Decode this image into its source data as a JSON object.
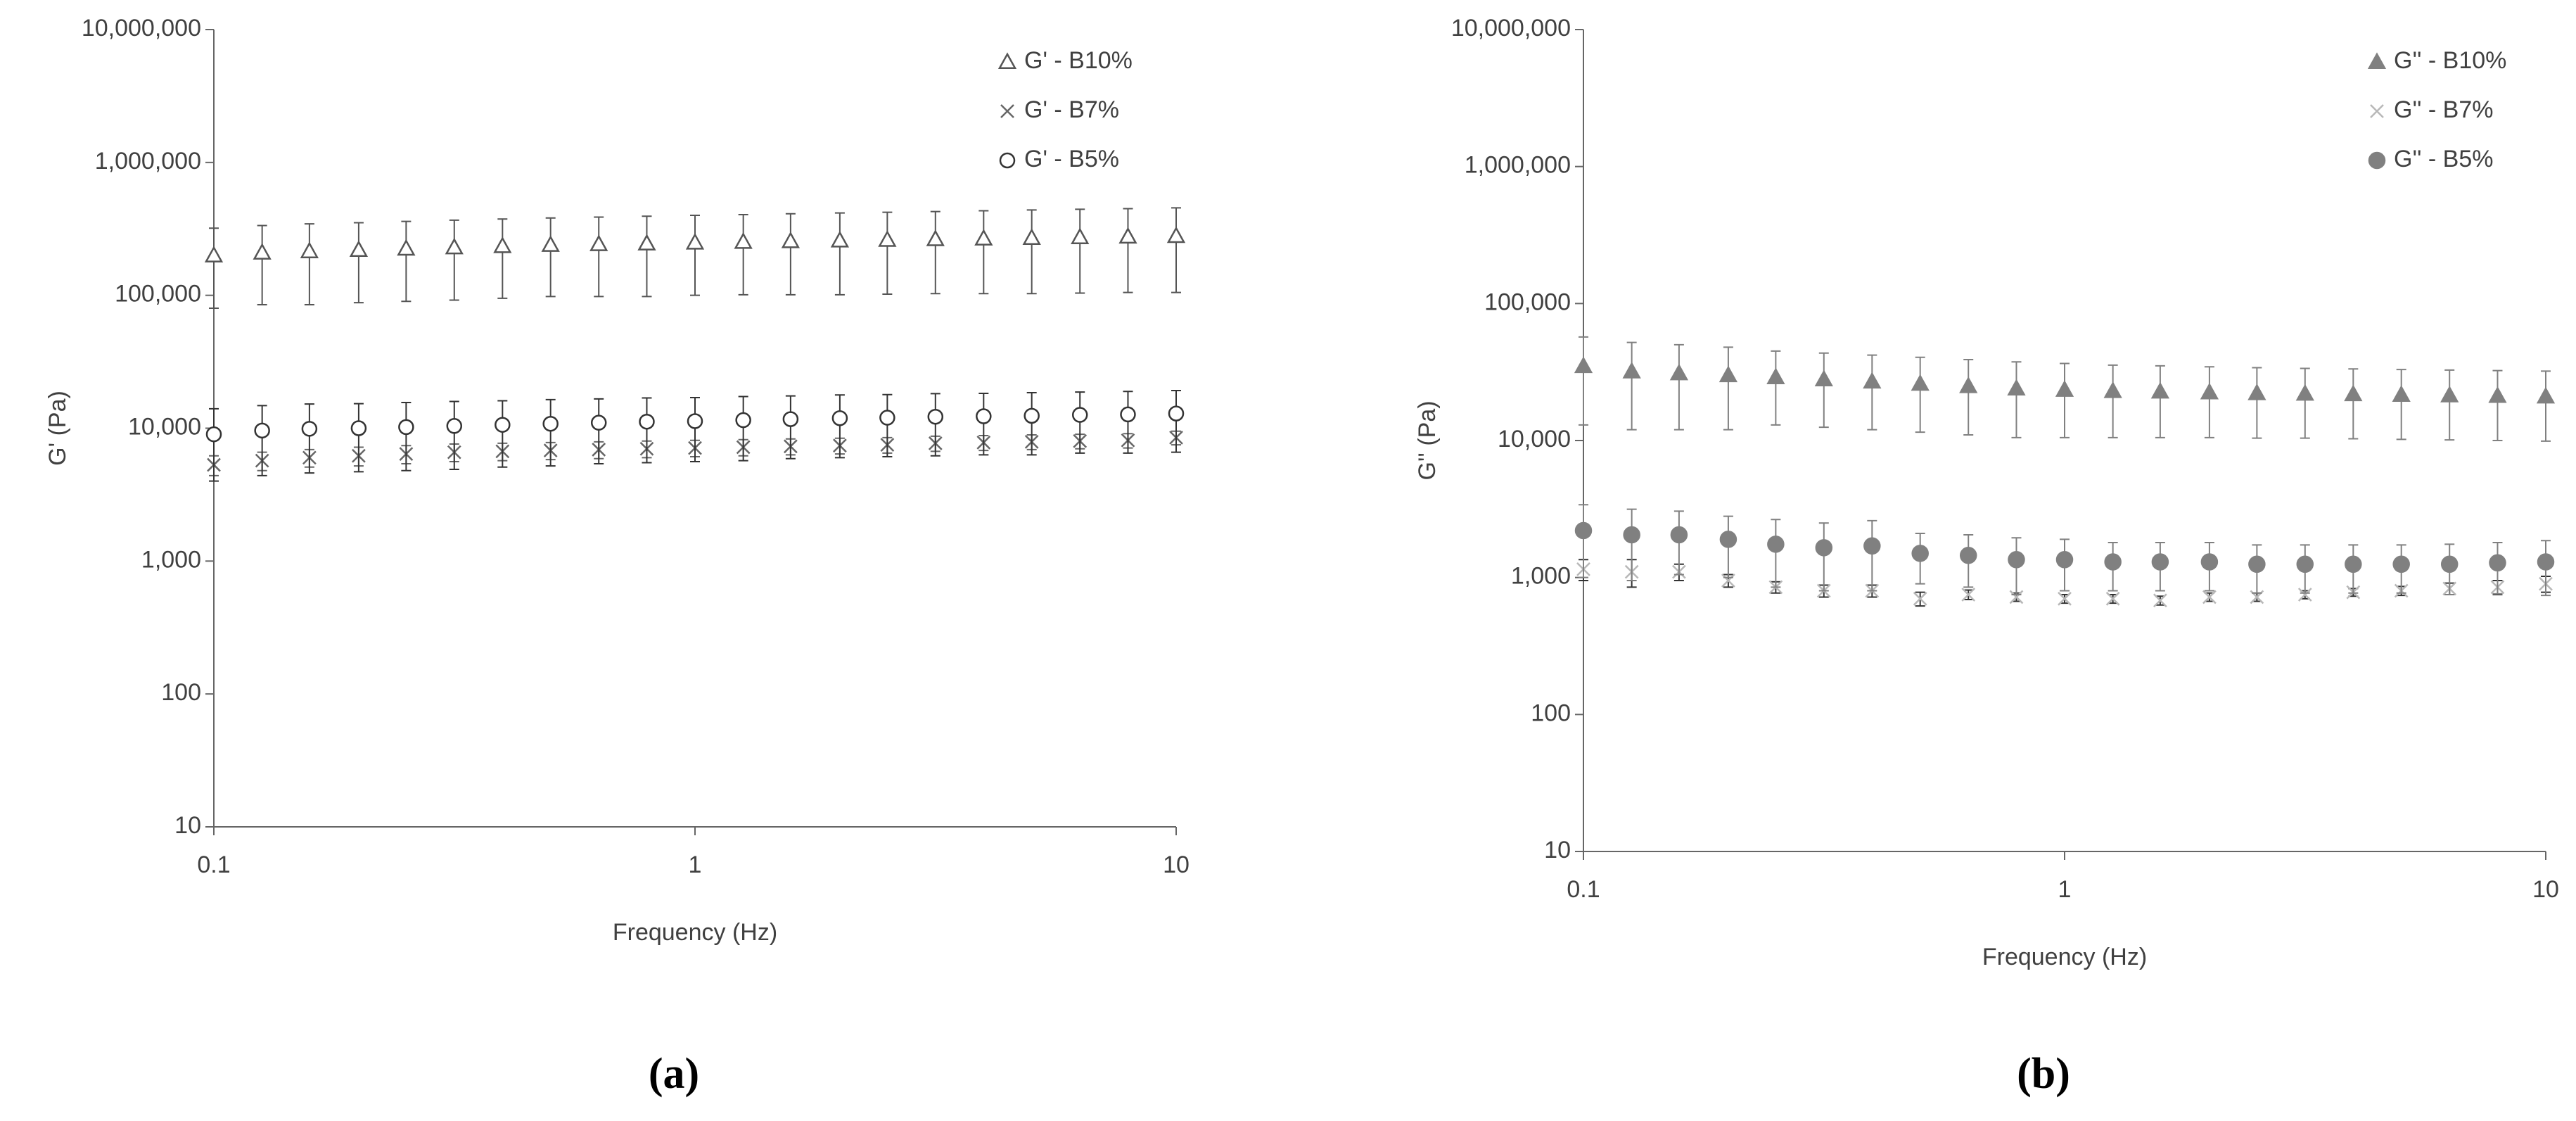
{
  "chart_data": [
    {
      "type": "scatter",
      "label": "(a)",
      "x_label": "Frequency (Hz)",
      "y_label": "G' (Pa)",
      "log_x": true,
      "log_y": true,
      "xlim": [
        0.1,
        10
      ],
      "xticks": [
        0.1,
        1,
        10
      ],
      "ylim": [
        10,
        10000000
      ],
      "yticks": [
        10,
        100,
        {
          "value": 1000,
          "label": "1,000"
        },
        {
          "value": 10000,
          "label": "10,000"
        },
        {
          "value": 100000,
          "label": "100,000"
        },
        {
          "value": 1000000,
          "label": "1,000,000"
        },
        {
          "value": 10000000,
          "label": "10,000,000"
        }
      ],
      "legend": "top-right",
      "x": [
        0.1,
        0.126,
        0.158,
        0.2,
        0.251,
        0.316,
        0.398,
        0.501,
        0.631,
        0.794,
        1,
        1.26,
        1.58,
        2,
        2.51,
        3.16,
        3.98,
        5.01,
        6.31,
        7.94,
        10
      ],
      "series": [
        {
          "name": "G' - B10%",
          "color": "#555555",
          "marker": "triangle-open",
          "values": [
            200000,
            210000,
            215000,
            220000,
            225000,
            230000,
            235000,
            240000,
            243000,
            246000,
            250000,
            253000,
            256000,
            259000,
            262000,
            265000,
            268000,
            271000,
            274000,
            277000,
            280000
          ],
          "errors": [
            120000,
            125000,
            130000,
            132000,
            135000,
            138000,
            140000,
            142000,
            145000,
            148000,
            150000,
            152000,
            155000,
            158000,
            160000,
            162000,
            165000,
            168000,
            170000,
            172000,
            175000
          ]
        },
        {
          "name": "G' - B7%",
          "color": "#666666",
          "marker": "cross",
          "values": [
            5300,
            5700,
            6000,
            6200,
            6400,
            6600,
            6700,
            6800,
            6900,
            7000,
            7100,
            7200,
            7300,
            7400,
            7500,
            7700,
            7800,
            7900,
            8000,
            8100,
            8500
          ],
          "errors": [
            900,
            900,
            900,
            1000,
            1000,
            1000,
            1000,
            1000,
            1000,
            1000,
            1000,
            1000,
            1000,
            1000,
            1000,
            1000,
            1000,
            1000,
            1000,
            1000,
            1000
          ]
        },
        {
          "name": "G' - B5%",
          "color": "#333333",
          "marker": "circle-open",
          "values": [
            9000,
            9600,
            9900,
            10000,
            10200,
            10400,
            10600,
            10800,
            11000,
            11200,
            11300,
            11500,
            11700,
            11900,
            12000,
            12200,
            12300,
            12400,
            12600,
            12700,
            12900
          ],
          "errors": [
            5000,
            5200,
            5300,
            5300,
            5400,
            5500,
            5500,
            5600,
            5600,
            5700,
            5700,
            5800,
            5800,
            5900,
            5900,
            6000,
            6000,
            6100,
            6100,
            6200,
            6300
          ]
        }
      ]
    },
    {
      "type": "scatter",
      "label": "(b)",
      "x_label": "Frequency (Hz)",
      "y_label": "G'' (Pa)",
      "log_x": true,
      "log_y": true,
      "xlim": [
        0.1,
        10
      ],
      "xticks": [
        0.1,
        1,
        10
      ],
      "ylim": [
        10,
        10000000
      ],
      "yticks": [
        10,
        100,
        {
          "value": 1000,
          "label": "1,000"
        },
        {
          "value": 10000,
          "label": "10,000"
        },
        {
          "value": 100000,
          "label": "100,000"
        },
        {
          "value": 1000000,
          "label": "1,000,000"
        },
        {
          "value": 10000000,
          "label": "10,000,000"
        }
      ],
      "legend": "top-right",
      "x": [
        0.1,
        0.126,
        0.158,
        0.2,
        0.251,
        0.316,
        0.398,
        0.501,
        0.631,
        0.794,
        1,
        1.26,
        1.58,
        2,
        2.51,
        3.16,
        3.98,
        5.01,
        6.31,
        7.94,
        10
      ],
      "series": [
        {
          "name": "G'' - B10%",
          "color": "#808080",
          "marker": "triangle",
          "values": [
            35000,
            32000,
            31000,
            30000,
            29000,
            28000,
            27000,
            26000,
            25000,
            24000,
            23500,
            23000,
            22800,
            22500,
            22200,
            22000,
            21800,
            21600,
            21400,
            21200,
            21000
          ],
          "errors": [
            22000,
            20000,
            19000,
            18000,
            16000,
            15500,
            15000,
            14500,
            14000,
            13500,
            13000,
            12500,
            12300,
            12000,
            11800,
            11600,
            11500,
            11400,
            11300,
            11200,
            11100
          ]
        },
        {
          "name": "G'' - B7%",
          "color": "#b8b8b8",
          "marker": "cross",
          "values": [
            1150,
            1100,
            1100,
            950,
            850,
            800,
            800,
            700,
            750,
            720,
            700,
            700,
            680,
            720,
            720,
            750,
            780,
            800,
            830,
            850,
            900
          ],
          "errors": [
            200,
            250,
            150,
            100,
            80,
            80,
            80,
            80,
            60,
            50,
            50,
            50,
            50,
            50,
            50,
            50,
            50,
            60,
            80,
            100,
            120
          ]
        },
        {
          "name": "G'' - B5%",
          "color": "#808080",
          "marker": "circle",
          "values": [
            2200,
            2050,
            2050,
            1900,
            1750,
            1650,
            1700,
            1500,
            1450,
            1350,
            1350,
            1300,
            1300,
            1300,
            1250,
            1250,
            1250,
            1250,
            1250,
            1280,
            1300
          ],
          "errors": [
            1200,
            1100,
            1000,
            900,
            900,
            850,
            900,
            600,
            600,
            600,
            550,
            500,
            500,
            500,
            480,
            480,
            480,
            480,
            500,
            520,
            560
          ]
        }
      ]
    }
  ]
}
